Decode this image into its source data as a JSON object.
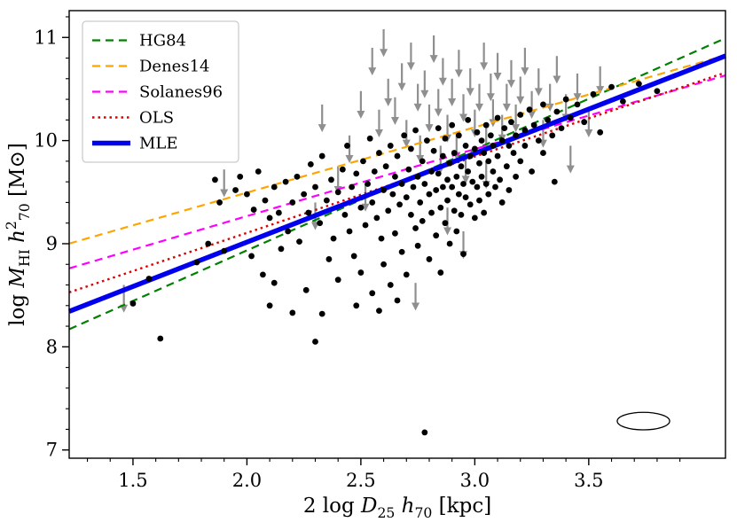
{
  "figure": {
    "background": "#ffffff",
    "axes_color": "#000000"
  },
  "chart_data": {
    "type": "scatter",
    "title": "",
    "xlabel_parts": [
      {
        "t": "2 log ",
        "s": "rm"
      },
      {
        "t": "D",
        "s": "it"
      },
      {
        "t": "25",
        "s": "sub"
      },
      {
        "t": " ",
        "s": "rm"
      },
      {
        "t": "h",
        "s": "it"
      },
      {
        "t": "70",
        "s": "sub"
      },
      {
        "t": " [kpc]",
        "s": "rm"
      }
    ],
    "ylabel_parts": [
      {
        "t": "log ",
        "s": "rm"
      },
      {
        "t": "M",
        "s": "it"
      },
      {
        "t": "HI",
        "s": "sub"
      },
      {
        "t": " ",
        "s": "rm"
      },
      {
        "t": "h",
        "s": "it"
      },
      {
        "t": "2",
        "s": "sup"
      },
      {
        "t": "70",
        "s": "sub"
      },
      {
        "t": " [M",
        "s": "rm"
      },
      {
        "t": "⊙",
        "s": "rm"
      },
      {
        "t": "]",
        "s": "rm"
      }
    ],
    "xlim": [
      1.22,
      4.1
    ],
    "ylim": [
      6.92,
      11.26
    ],
    "xticks": {
      "values": [
        1.5,
        2.0,
        2.5,
        3.0,
        3.5
      ],
      "labels": [
        "1.5",
        "2.0",
        "2.5",
        "3.0",
        "3.5"
      ]
    },
    "yticks": {
      "values": [
        7,
        8,
        9,
        10,
        11
      ],
      "labels": [
        "7",
        "8",
        "9",
        "10",
        "11"
      ]
    },
    "x_minor_step": 0.1,
    "y_minor_step": 0.2,
    "grid": false,
    "legend_position": "upper left",
    "lines": [
      {
        "label": "HG84",
        "color": "#008000",
        "dash": "9 6",
        "width": 2.2,
        "slope": 0.98,
        "intercept": 6.975
      },
      {
        "label": "Denes14",
        "color": "#ffa500",
        "dash": "9 6",
        "width": 2.2,
        "slope": 0.634,
        "intercept": 8.2275
      },
      {
        "label": "Solanes96",
        "color": "#ff00ff",
        "dash": "9 6",
        "width": 2.2,
        "slope": 0.65,
        "intercept": 7.9675
      },
      {
        "label": "OLS",
        "color": "#dd0000",
        "dash": "2.5 4",
        "width": 2.4,
        "slope": 0.74,
        "intercept": 7.625
      },
      {
        "label": "MLE",
        "color": "#0000ee",
        "dash": "",
        "width": 5.5,
        "slope": 0.86,
        "intercept": 7.295
      }
    ],
    "marker": {
      "size": 3.4,
      "color": "#000000"
    },
    "upper_limit_style": {
      "color": "#8f8f8f",
      "length": 0.26
    },
    "beam_ellipse": {
      "cx": 3.74,
      "cy": 7.28,
      "rx": 0.115,
      "ry": 0.085,
      "color": "#000000"
    },
    "points": [
      [
        1.5,
        8.42
      ],
      [
        1.57,
        8.66
      ],
      [
        1.62,
        8.08
      ],
      [
        1.78,
        8.82
      ],
      [
        1.83,
        9.0
      ],
      [
        1.86,
        9.62
      ],
      [
        1.88,
        9.4
      ],
      [
        1.9,
        8.93
      ],
      [
        1.95,
        9.52
      ],
      [
        1.97,
        9.65
      ],
      [
        2.0,
        9.48
      ],
      [
        2.02,
        8.88
      ],
      [
        2.03,
        9.33
      ],
      [
        2.05,
        9.7
      ],
      [
        2.07,
        8.7
      ],
      [
        2.08,
        9.42
      ],
      [
        2.1,
        9.25
      ],
      [
        2.1,
        8.4
      ],
      [
        2.12,
        9.55
      ],
      [
        2.12,
        8.62
      ],
      [
        2.14,
        9.3
      ],
      [
        2.15,
        8.95
      ],
      [
        2.17,
        9.6
      ],
      [
        2.18,
        9.12
      ],
      [
        2.2,
        9.4
      ],
      [
        2.2,
        8.33
      ],
      [
        2.22,
        9.65
      ],
      [
        2.23,
        9.02
      ],
      [
        2.25,
        9.48
      ],
      [
        2.26,
        8.55
      ],
      [
        2.27,
        9.3
      ],
      [
        2.28,
        9.77
      ],
      [
        2.3,
        9.55
      ],
      [
        2.3,
        8.05
      ],
      [
        2.32,
        9.2
      ],
      [
        2.33,
        9.85
      ],
      [
        2.33,
        8.32
      ],
      [
        2.35,
        9.42
      ],
      [
        2.36,
        8.85
      ],
      [
        2.37,
        9.62
      ],
      [
        2.38,
        9.05
      ],
      [
        2.4,
        9.5
      ],
      [
        2.4,
        8.65
      ],
      [
        2.42,
        9.72
      ],
      [
        2.43,
        9.28
      ],
      [
        2.44,
        9.95
      ],
      [
        2.45,
        9.12
      ],
      [
        2.46,
        9.55
      ],
      [
        2.47,
        8.88
      ],
      [
        2.48,
        9.68
      ],
      [
        2.48,
        8.4
      ],
      [
        2.5,
        9.35
      ],
      [
        2.5,
        8.72
      ],
      [
        2.51,
        9.8
      ],
      [
        2.52,
        9.18
      ],
      [
        2.53,
        9.58
      ],
      [
        2.54,
        10.02
      ],
      [
        2.55,
        9.4
      ],
      [
        2.55,
        8.52
      ],
      [
        2.56,
        9.7
      ],
      [
        2.57,
        9.25
      ],
      [
        2.58,
        9.88
      ],
      [
        2.58,
        8.35
      ],
      [
        2.59,
        9.05
      ],
      [
        2.6,
        9.52
      ],
      [
        2.6,
        8.8
      ],
      [
        2.61,
        9.75
      ],
      [
        2.62,
        9.32
      ],
      [
        2.63,
        9.95
      ],
      [
        2.63,
        8.6
      ],
      [
        2.64,
        9.48
      ],
      [
        2.65,
        9.65
      ],
      [
        2.65,
        9.1
      ],
      [
        2.66,
        9.85
      ],
      [
        2.66,
        8.45
      ],
      [
        2.67,
        9.38
      ],
      [
        2.68,
        9.58
      ],
      [
        2.68,
        8.92
      ],
      [
        2.69,
        10.05
      ],
      [
        2.7,
        9.45
      ],
      [
        2.7,
        8.7
      ],
      [
        2.71,
        9.72
      ],
      [
        2.72,
        9.28
      ],
      [
        2.72,
        9.92
      ],
      [
        2.73,
        9.55
      ],
      [
        2.74,
        9.15
      ],
      [
        2.74,
        10.1
      ],
      [
        2.75,
        9.65
      ],
      [
        2.75,
        8.98
      ],
      [
        2.76,
        9.4
      ],
      [
        2.77,
        9.8
      ],
      [
        2.77,
        9.22
      ],
      [
        2.78,
        9.58
      ],
      [
        2.78,
        7.17
      ],
      [
        2.79,
        10.0
      ],
      [
        2.8,
        9.48
      ],
      [
        2.8,
        8.85
      ],
      [
        2.81,
        9.7
      ],
      [
        2.81,
        9.3
      ],
      [
        2.82,
        9.9
      ],
      [
        2.83,
        9.52
      ],
      [
        2.83,
        9.08
      ],
      [
        2.84,
        10.12
      ],
      [
        2.84,
        9.68
      ],
      [
        2.85,
        9.35
      ],
      [
        2.85,
        8.72
      ],
      [
        2.86,
        9.85
      ],
      [
        2.86,
        9.55
      ],
      [
        2.87,
        9.2
      ],
      [
        2.87,
        10.02
      ],
      [
        2.88,
        9.62
      ],
      [
        2.88,
        9.42
      ],
      [
        2.89,
        9.78
      ],
      [
        2.89,
        9.0
      ],
      [
        2.9,
        9.55
      ],
      [
        2.9,
        10.15
      ],
      [
        2.91,
        9.32
      ],
      [
        2.91,
        9.88
      ],
      [
        2.92,
        9.65
      ],
      [
        2.92,
        9.12
      ],
      [
        2.93,
        9.48
      ],
      [
        2.93,
        10.05
      ],
      [
        2.94,
        9.75
      ],
      [
        2.94,
        9.28
      ],
      [
        2.95,
        9.58
      ],
      [
        2.95,
        8.9
      ],
      [
        2.96,
        9.95
      ],
      [
        2.96,
        9.45
      ],
      [
        2.97,
        9.7
      ],
      [
        2.97,
        10.2
      ],
      [
        2.98,
        9.38
      ],
      [
        2.98,
        9.85
      ],
      [
        2.99,
        9.6
      ],
      [
        3.0,
        9.92
      ],
      [
        3.0,
        9.25
      ],
      [
        3.01,
        10.08
      ],
      [
        3.01,
        9.55
      ],
      [
        3.02,
        9.78
      ],
      [
        3.02,
        9.42
      ],
      [
        3.03,
        10.0
      ],
      [
        3.03,
        9.65
      ],
      [
        3.04,
        9.88
      ],
      [
        3.04,
        9.3
      ],
      [
        3.05,
        10.15
      ],
      [
        3.05,
        9.58
      ],
      [
        3.06,
        9.8
      ],
      [
        3.06,
        9.48
      ],
      [
        3.07,
        10.05
      ],
      [
        3.08,
        9.7
      ],
      [
        3.08,
        9.95
      ],
      [
        3.09,
        9.55
      ],
      [
        3.1,
        10.22
      ],
      [
        3.1,
        9.85
      ],
      [
        3.11,
        9.62
      ],
      [
        3.12,
        10.0
      ],
      [
        3.12,
        9.4
      ],
      [
        3.13,
        10.12
      ],
      [
        3.14,
        9.75
      ],
      [
        3.15,
        9.95
      ],
      [
        3.15,
        9.52
      ],
      [
        3.16,
        10.18
      ],
      [
        3.17,
        9.88
      ],
      [
        3.18,
        10.05
      ],
      [
        3.18,
        9.65
      ],
      [
        3.2,
        10.25
      ],
      [
        3.2,
        9.8
      ],
      [
        3.22,
        10.1
      ],
      [
        3.22,
        9.95
      ],
      [
        3.24,
        10.3
      ],
      [
        3.25,
        9.7
      ],
      [
        3.26,
        10.15
      ],
      [
        3.28,
        10.0
      ],
      [
        3.3,
        10.35
      ],
      [
        3.3,
        9.88
      ],
      [
        3.32,
        10.2
      ],
      [
        3.34,
        10.05
      ],
      [
        3.35,
        9.6
      ],
      [
        3.36,
        10.28
      ],
      [
        3.38,
        10.12
      ],
      [
        3.4,
        10.4
      ],
      [
        3.42,
        10.22
      ],
      [
        3.45,
        10.35
      ],
      [
        3.48,
        10.18
      ],
      [
        3.52,
        10.45
      ],
      [
        3.55,
        10.08
      ],
      [
        3.6,
        10.52
      ],
      [
        3.65,
        10.38
      ],
      [
        3.72,
        10.55
      ],
      [
        3.8,
        10.48
      ]
    ],
    "upper_limits": [
      [
        1.46,
        8.6
      ],
      [
        1.9,
        9.72
      ],
      [
        2.3,
        9.4
      ],
      [
        2.33,
        10.35
      ],
      [
        2.4,
        9.75
      ],
      [
        2.45,
        10.05
      ],
      [
        2.5,
        10.48
      ],
      [
        2.52,
        9.58
      ],
      [
        2.55,
        10.9
      ],
      [
        2.58,
        10.3
      ],
      [
        2.6,
        11.08
      ],
      [
        2.62,
        10.6
      ],
      [
        2.65,
        10.42
      ],
      [
        2.68,
        10.75
      ],
      [
        2.7,
        10.2
      ],
      [
        2.72,
        10.95
      ],
      [
        2.74,
        8.62
      ],
      [
        2.75,
        10.55
      ],
      [
        2.76,
        10.05
      ],
      [
        2.78,
        10.68
      ],
      [
        2.8,
        10.35
      ],
      [
        2.82,
        11.02
      ],
      [
        2.84,
        10.5
      ],
      [
        2.85,
        9.95
      ],
      [
        2.86,
        10.8
      ],
      [
        2.88,
        10.25
      ],
      [
        2.88,
        9.35
      ],
      [
        2.9,
        10.6
      ],
      [
        2.92,
        10.08
      ],
      [
        2.93,
        10.88
      ],
      [
        2.95,
        10.45
      ],
      [
        2.95,
        9.12
      ],
      [
        2.96,
        9.85
      ],
      [
        2.98,
        10.7
      ],
      [
        3.0,
        10.3
      ],
      [
        3.02,
        10.55
      ],
      [
        3.04,
        10.95
      ],
      [
        3.05,
        10.15
      ],
      [
        3.05,
        9.8
      ],
      [
        3.07,
        10.65
      ],
      [
        3.08,
        10.4
      ],
      [
        3.1,
        10.85
      ],
      [
        3.12,
        10.25
      ],
      [
        3.14,
        10.55
      ],
      [
        3.16,
        10.78
      ],
      [
        3.18,
        10.35
      ],
      [
        3.2,
        10.62
      ],
      [
        3.22,
        10.9
      ],
      [
        3.25,
        10.48
      ],
      [
        3.28,
        10.7
      ],
      [
        3.3,
        10.2
      ],
      [
        3.33,
        10.55
      ],
      [
        3.36,
        10.82
      ],
      [
        3.4,
        10.45
      ],
      [
        3.42,
        9.95
      ],
      [
        3.45,
        10.65
      ],
      [
        3.5,
        10.3
      ],
      [
        3.55,
        10.72
      ]
    ]
  }
}
